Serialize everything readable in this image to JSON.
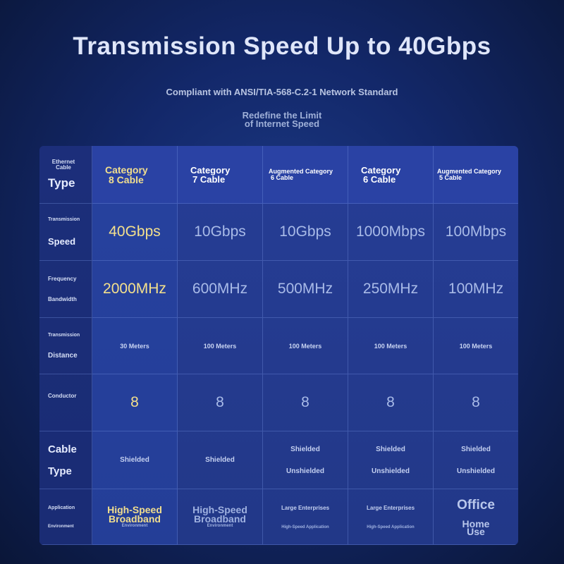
{
  "title": "Transmission Speed Up to 40Gbps",
  "subtitle": "Compliant with ANSI/TIA-568-C.2-1 Network Standard",
  "tagline": {
    "line1": "Redefine the Limit",
    "line2": "of Internet Speed"
  },
  "table": {
    "row_headers": {
      "type": {
        "small": "Ethernet Cable",
        "big": "Type"
      },
      "speed": {
        "small": "Transmission",
        "big": "Speed"
      },
      "frequency": {
        "small1": "Frequency",
        "small2": "Bandwidth"
      },
      "distance": {
        "small": "Transmission",
        "big": "Distance"
      },
      "conductor": {
        "small": "Conductor"
      },
      "cable_type": {
        "big1": "Cable",
        "big2": "Type"
      },
      "application": {
        "small1": "Application",
        "small2": "Environment"
      }
    },
    "columns": [
      {
        "name_line1": "Category",
        "name_line2": "8 Cable",
        "speed": "40Gbps",
        "frequency": "2000MHz",
        "distance": "30 Meters",
        "conductor": "8",
        "shield1": "Shielded",
        "shield2": "",
        "app1": "High-Speed",
        "app2": "Broadband",
        "app3": "Environment"
      },
      {
        "name_line1": "Category",
        "name_line2": "7 Cable",
        "speed": "10Gbps",
        "frequency": "600MHz",
        "distance": "100 Meters",
        "conductor": "8",
        "shield1": "Shielded",
        "shield2": "",
        "app1": "High-Speed",
        "app2": "Broadband",
        "app3": "Environment"
      },
      {
        "name_line1": "Augmented Category",
        "name_line2": "6 Cable",
        "speed": "10Gbps",
        "frequency": "500MHz",
        "distance": "100 Meters",
        "conductor": "8",
        "shield1": "Shielded",
        "shield2": "Unshielded",
        "app1": "Large Enterprises",
        "app2": "High-Speed Application"
      },
      {
        "name_line1": "Category",
        "name_line2": "6 Cable",
        "speed": "1000Mbps",
        "frequency": "250MHz",
        "distance": "100 Meters",
        "conductor": "8",
        "shield1": "Shielded",
        "shield2": "Unshielded",
        "app1": "Large Enterprises",
        "app2": "High-Speed Application"
      },
      {
        "name_line1": "Augmented Category",
        "name_line2": "5 Cable",
        "speed": "100Mbps",
        "frequency": "100MHz",
        "distance": "100 Meters",
        "conductor": "8",
        "shield1": "Shielded",
        "shield2": "Unshielded",
        "app1": "Office",
        "app2": "Home",
        "app3": "Use"
      }
    ]
  },
  "colors": {
    "background": "#13286a",
    "highlight": "#f1de8e",
    "table": "#233a8c"
  }
}
